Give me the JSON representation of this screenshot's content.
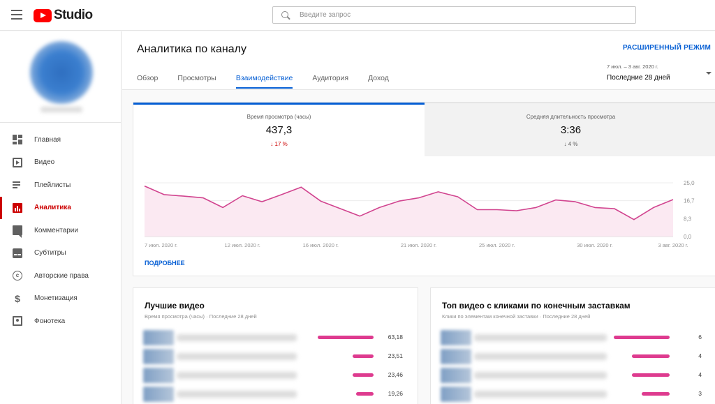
{
  "app": {
    "logo_text": "Studio"
  },
  "search": {
    "placeholder": "Введите запрос"
  },
  "sidebar": {
    "items": [
      {
        "label": "Главная",
        "icon": "dashboard-icon"
      },
      {
        "label": "Видео",
        "icon": "video-icon"
      },
      {
        "label": "Плейлисты",
        "icon": "playlist-icon"
      },
      {
        "label": "Аналитика",
        "icon": "analytics-icon",
        "active": true
      },
      {
        "label": "Комментарии",
        "icon": "comments-icon"
      },
      {
        "label": "Субтитры",
        "icon": "subtitles-icon"
      },
      {
        "label": "Авторские права",
        "icon": "copyright-icon"
      },
      {
        "label": "Монетизация",
        "icon": "dollar-icon"
      },
      {
        "label": "Фонотека",
        "icon": "audio-library-icon"
      }
    ]
  },
  "header": {
    "title": "Аналитика по каналу",
    "advanced_label": "РАСШИРЕННЫЙ РЕЖИМ",
    "tabs": [
      "Обзор",
      "Просмотры",
      "Взаимодействие",
      "Аудитория",
      "Доход"
    ],
    "active_tab": 2,
    "date_range": "7 июл. – 3 авг. 2020 г.",
    "date_preset": "Последние 28 дней"
  },
  "metrics": [
    {
      "label": "Время просмотра (часы)",
      "value": "437,3",
      "change": "↓ 17 %"
    },
    {
      "label": "Средняя длительность просмотра",
      "value": "3:36",
      "change": "↓ 4 %"
    }
  ],
  "chart": {
    "more_label": "ПОДРОБНЕЕ"
  },
  "chart_data": {
    "type": "area",
    "x_labels": [
      "7 июл. 2020 г.",
      "12 июл. 2020 г.",
      "16 июл. 2020 г.",
      "21 июл. 2020 г.",
      "25 июл. 2020 г.",
      "30 июл. 2020 г.",
      "3 авг. 2020 г."
    ],
    "y_ticks": [
      "25,0",
      "16,7",
      "8,3",
      "0,0"
    ],
    "ylim": [
      0,
      25
    ],
    "values": [
      23.5,
      19.5,
      18.8,
      18.0,
      13.5,
      19.0,
      16.2,
      19.5,
      23.0,
      16.5,
      13.0,
      9.5,
      13.5,
      16.5,
      18.0,
      20.8,
      18.5,
      12.5,
      12.5,
      12.0,
      13.5,
      17.0,
      16.2,
      13.5,
      13.0,
      7.9,
      13.5,
      17.2
    ],
    "color": "#d1448f",
    "fill": "#fbe9f2"
  },
  "top_videos": {
    "title": "Лучшие видео",
    "subtitle": "Время просмотра (часы) · Последние 28 дней",
    "rows": [
      {
        "value": "63,18",
        "fraction": 1.0
      },
      {
        "value": "23,51",
        "fraction": 0.37
      },
      {
        "value": "23,46",
        "fraction": 0.37
      },
      {
        "value": "19,26",
        "fraction": 0.31
      }
    ]
  },
  "end_screen": {
    "title": "Топ видео с кликами по конечным заставкам",
    "subtitle": "Клики по элементам конечной заставки · Последние 28 дней",
    "rows": [
      {
        "value": "6",
        "fraction": 1.0
      },
      {
        "value": "4",
        "fraction": 0.67
      },
      {
        "value": "4",
        "fraction": 0.67
      },
      {
        "value": "3",
        "fraction": 0.5
      }
    ]
  }
}
